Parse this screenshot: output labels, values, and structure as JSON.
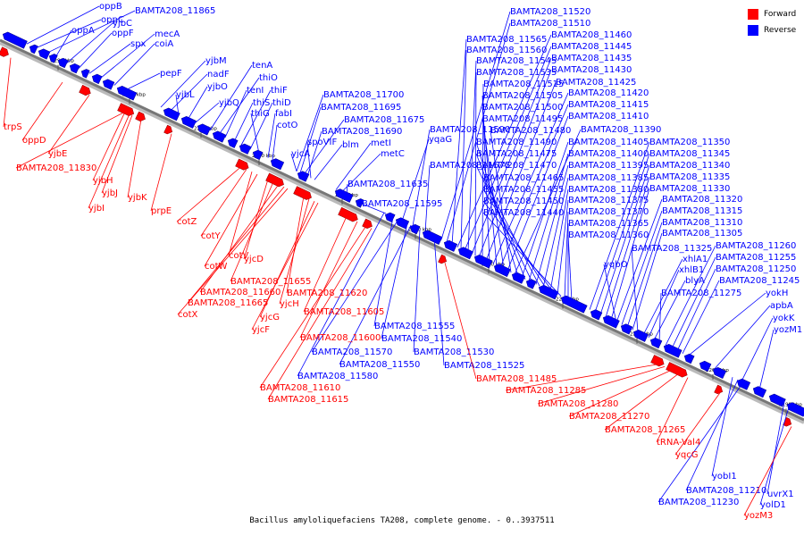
{
  "caption": "Bacillus amyloliquefaciens TA208, complete genome. - 0..3937511",
  "legend": [
    {
      "label": "Forward",
      "color": "#ff0000"
    },
    {
      "label": "Reverse",
      "color": "#0000ff"
    }
  ],
  "colors": {
    "forward": "#ff0000",
    "reverse": "#0000ff",
    "backbone": "#777777"
  },
  "ticks": [
    "2290 kbp",
    "2280 kbp",
    "2270 kbp",
    "2260 kbp",
    "2250 kbp",
    "2240 kbp",
    "2230 kbp",
    "2220 kbp",
    "2210 kbp",
    "2200 kbp",
    "2190 kbp"
  ],
  "reverse_labels": [
    "oppB",
    "oppC",
    "BAMTA208_11865",
    "oppA",
    "yjbC",
    "oppF",
    "spx",
    "mecA",
    "coiA",
    "pepF",
    "yjbM",
    "nadF",
    "yjbL",
    "yjbO",
    "yjbQ",
    "tenA",
    "thiO",
    "tenI",
    "thiS",
    "thiF",
    "thiD",
    "thiG",
    "fabI",
    "cotO",
    "BAMTA208_11700",
    "BAMTA208_11695",
    "BAMTA208_11675",
    "BAMTA208_11690",
    "spoVIF",
    "blm",
    "metI",
    "metC",
    "yjcA",
    "BAMTA208_11635",
    "BAMTA208_11595",
    "yqaG",
    "BAMTA208_11590",
    "BAMTA208_11575",
    "BAMTA208_11520",
    "BAMTA208_11510",
    "BAMTA208_11565",
    "BAMTA208_11460",
    "BAMTA208_11560",
    "BAMTA208_11445",
    "BAMTA208_11545",
    "BAMTA208_11435",
    "BAMTA208_11535",
    "BAMTA208_11430",
    "BAMTA208_11515",
    "BAMTA208_11425",
    "BAMTA208_11505",
    "BAMTA208_11420",
    "BAMTA208_11500",
    "BAMTA208_11415",
    "BAMTA208_11495",
    "BAMTA208_11410",
    "BAMTA208_11480",
    "BAMTA208_11390",
    "BAMTA208_11490",
    "BAMTA208_11405",
    "BAMTA208_11475",
    "BAMTA208_11400",
    "BAMTA208_11470",
    "BAMTA208_11395",
    "BAMTA208_11465",
    "BAMTA208_11385",
    "BAMTA208_11455",
    "BAMTA208_11380",
    "BAMTA208_11450",
    "BAMTA208_11375",
    "BAMTA208_11440",
    "BAMTA208_11370",
    "BAMTA208_11365",
    "BAMTA208_11360",
    "BAMTA208_11350",
    "BAMTA208_11345",
    "BAMTA208_11340",
    "BAMTA208_11335",
    "BAMTA208_11330",
    "BAMTA208_11320",
    "BAMTA208_11315",
    "BAMTA208_11310",
    "BAMTA208_11305",
    "BAMTA208_11325",
    "xhlA1",
    "xhlB1",
    "blyA",
    "BAMTA208_11275",
    "yqbO",
    "BAMTA208_11260",
    "BAMTA208_11255",
    "BAMTA208_11250",
    "BAMTA208_11245",
    "yokH",
    "apbA",
    "yokK",
    "yozM1",
    "BAMTA208_11555",
    "BAMTA208_11540",
    "BAMTA208_11530",
    "BAMTA208_11570",
    "BAMTA208_11550",
    "BAMTA208_11525",
    "BAMTA208_11580",
    "yobI1",
    "BAMTA208_11210",
    "BAMTA208_11230",
    "uvrX1",
    "yolD1"
  ],
  "forward_labels": [
    "trpS",
    "oppD",
    "yjbE",
    "BAMTA208_11830",
    "yjbH",
    "yjbJ",
    "yjbK",
    "yjbI",
    "prpE",
    "cotZ",
    "cotY",
    "cotV",
    "cotW",
    "yjcD",
    "BAMTA208_11655",
    "BAMTA208_11660",
    "BAMTA208_11665",
    "cotX",
    "BAMTA208_11620",
    "yjcH",
    "yjcG",
    "yjcF",
    "BAMTA208_11605",
    "BAMTA208_11600",
    "BAMTA208_11610",
    "BAMTA208_11615",
    "BAMTA208_11485",
    "BAMTA208_11285",
    "BAMTA208_11280",
    "BAMTA208_11270",
    "BAMTA208_11265",
    "tRNA-Val4",
    "yqcG",
    "yozM3"
  ]
}
